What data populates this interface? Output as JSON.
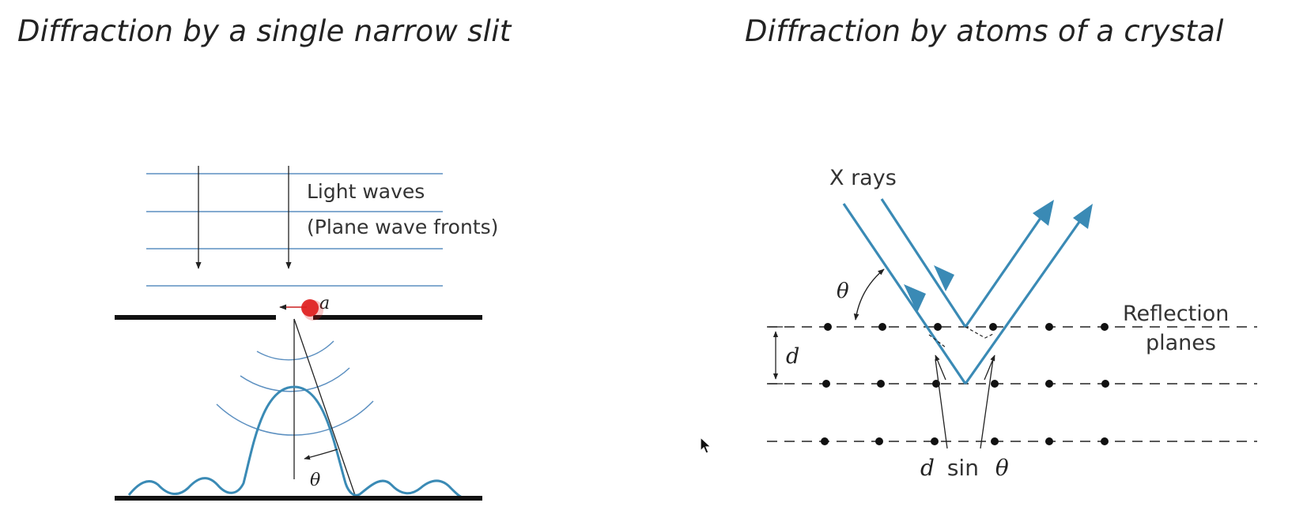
{
  "titles": {
    "left": "Diffraction by a single narrow slit",
    "right": "Diffraction by atoms of a crystal"
  },
  "single_slit": {
    "label_line1": "Light waves",
    "label_line2": "(Plane wave fronts)",
    "slit_label": "a",
    "angle_label": "θ",
    "colors": {
      "wavefront": "#5b8fc0",
      "intensity_curve": "#3a8ab5",
      "marker": "#e02020"
    }
  },
  "crystal": {
    "xrays_label": "X rays",
    "angle_label": "θ",
    "spacing_label": "d",
    "reflection_line1": "Reflection",
    "reflection_line2": "planes",
    "path_label_d": "d",
    "path_label_sin": "sin",
    "path_label_theta": "θ",
    "colors": {
      "ray": "#3a8ab5"
    }
  }
}
